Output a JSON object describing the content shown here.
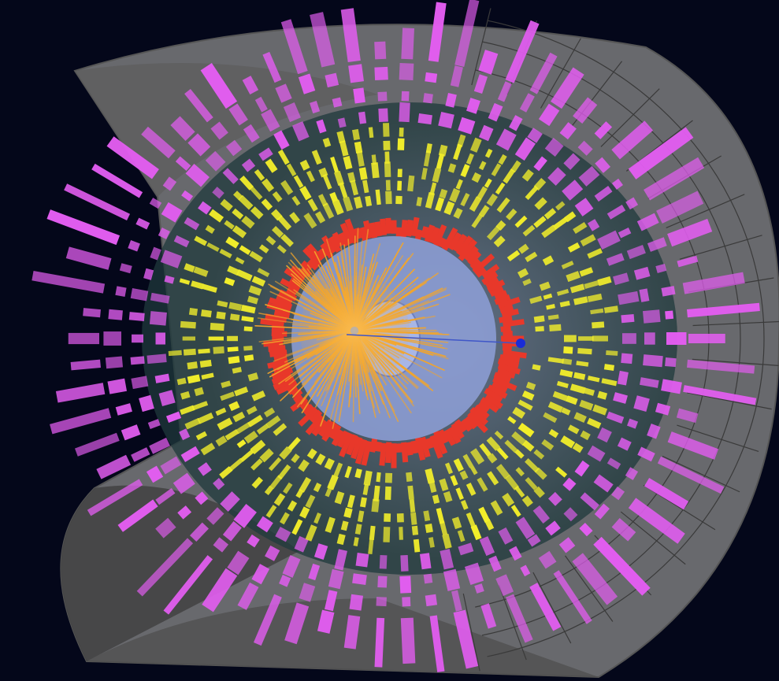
{
  "scene": {
    "background": "#04071a",
    "shell_color": "#8a8a8a",
    "shell_edge_color": "#3a3a3a",
    "calorimeter_inner_color": "#1f3a3c",
    "muon_tower_color": "#e25df0",
    "hcal_tower_color": "#f2ee2a",
    "ecal_color": "#e8382a",
    "tracker_color": "#f3a52a",
    "beam_pipe_color": "#8ea0d8",
    "vertex_marker_color": "#1a2cd8"
  }
}
